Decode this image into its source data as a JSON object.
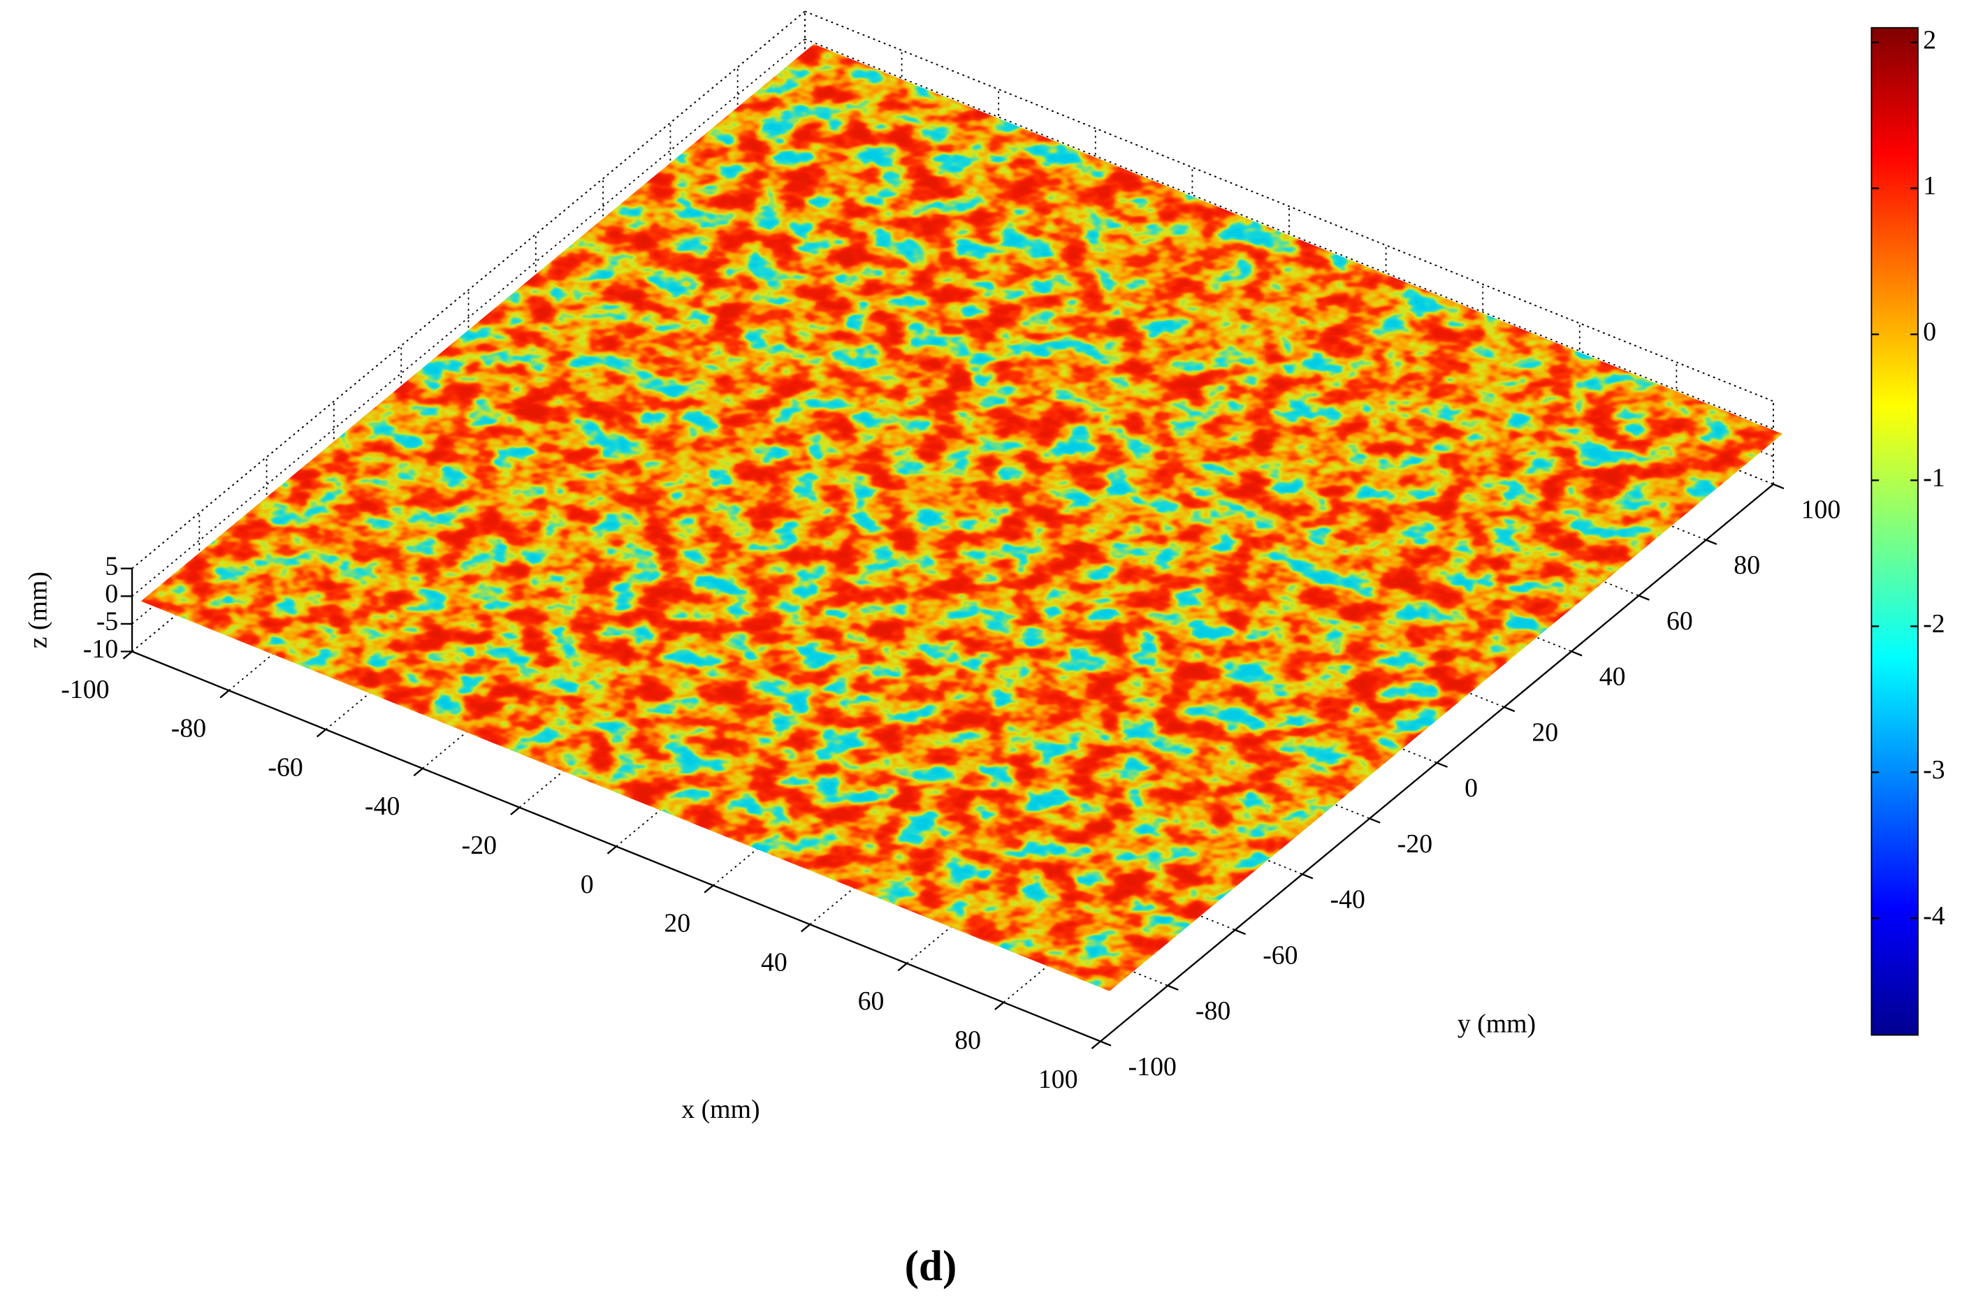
{
  "chart_data": {
    "type": "surface3d",
    "xlabel": "x (mm)",
    "ylabel": "y (mm)",
    "zlabel": "z (mm)",
    "caption": "(d)",
    "xlim": [
      -100,
      100
    ],
    "xticks": [
      -100,
      -80,
      -60,
      -40,
      -20,
      0,
      20,
      40,
      60,
      80,
      100
    ],
    "ylim": [
      -100,
      100
    ],
    "yticks": [
      -100,
      -80,
      -60,
      -40,
      -20,
      0,
      20,
      40,
      60,
      80,
      100
    ],
    "zlim": [
      -10,
      5
    ],
    "zticks": [
      -10,
      -5,
      0,
      5
    ],
    "colorbar": {
      "lim": [
        -4.8,
        2.1
      ],
      "ticks": [
        -4,
        -3,
        -2,
        -1,
        0,
        1,
        2
      ],
      "colormap": "jet"
    },
    "grid": true
  }
}
